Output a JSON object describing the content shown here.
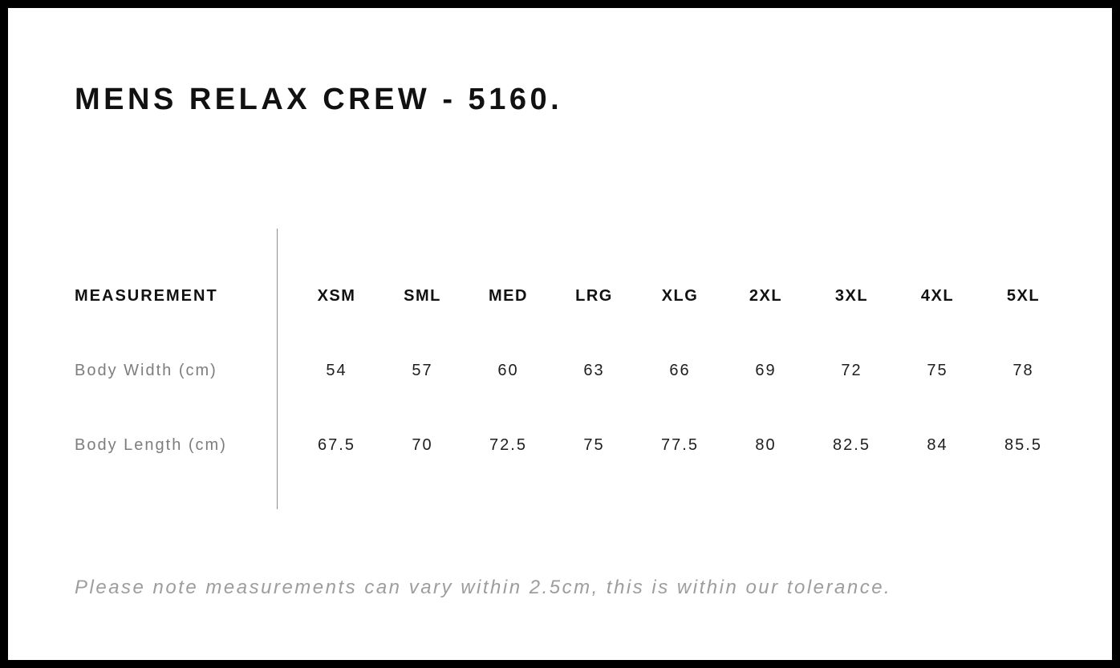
{
  "chart_data": {
    "type": "table",
    "title": "MENS RELAX CREW - 5160.",
    "corner_header": "MEASUREMENT",
    "columns": [
      "XSM",
      "SML",
      "MED",
      "LRG",
      "XLG",
      "2XL",
      "3XL",
      "4XL",
      "5XL"
    ],
    "rows": [
      {
        "label": "Body Width (cm)",
        "values": [
          54,
          57,
          60,
          63,
          66,
          69,
          72,
          75,
          78
        ]
      },
      {
        "label": "Body Length (cm)",
        "values": [
          67.5,
          70,
          72.5,
          75,
          77.5,
          80,
          82.5,
          84,
          85.5
        ]
      }
    ],
    "footnote": "Please note measurements can vary within 2.5cm, this is within our tolerance.",
    "layout": {
      "legend": "none",
      "grid": "off",
      "divider": "vertical-between-label-and-sizes"
    }
  },
  "colors": {
    "frame": "#000000",
    "background": "#ffffff",
    "heading_text": "#111111",
    "value_text": "#1e1e1e",
    "label_text": "#7d7d7d",
    "note_text": "#9d9d9d",
    "divider": "#909090"
  }
}
